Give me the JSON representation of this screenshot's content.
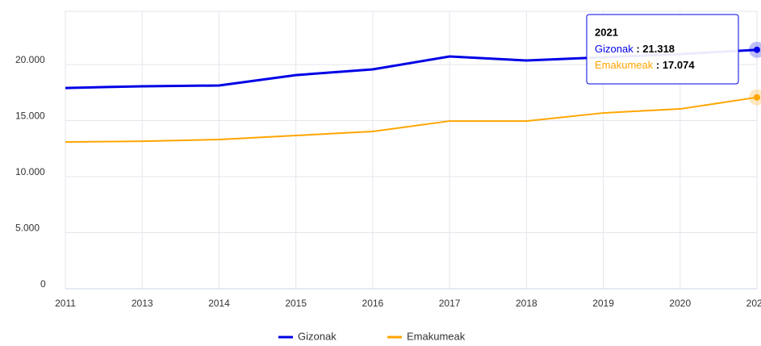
{
  "chart_data": {
    "type": "line",
    "categories": [
      "2011",
      "2013",
      "2014",
      "2015",
      "2016",
      "2017",
      "2018",
      "2019",
      "2020",
      "2021"
    ],
    "series": [
      {
        "name": "Gizonak",
        "color": "#0000e6",
        "values": [
          17910,
          18060,
          18130,
          19060,
          19570,
          20720,
          20360,
          20650,
          20930,
          21318
        ]
      },
      {
        "name": "Emakumeak",
        "color": "#ffa500",
        "values": [
          13090,
          13160,
          13310,
          13670,
          14030,
          14960,
          14960,
          15680,
          16040,
          17074
        ]
      }
    ],
    "ylim": [
      0,
      24750
    ],
    "yticks": [
      0,
      {
        "value": 5000,
        "label": "5.000"
      },
      {
        "value": 10000,
        "label": "10.000"
      },
      {
        "value": 15000,
        "label": "15.000"
      },
      {
        "value": 20000,
        "label": "20.000"
      }
    ],
    "grid": true,
    "legend": "bottom",
    "tooltip_values": [
      "21.318",
      "17.074"
    ]
  }
}
